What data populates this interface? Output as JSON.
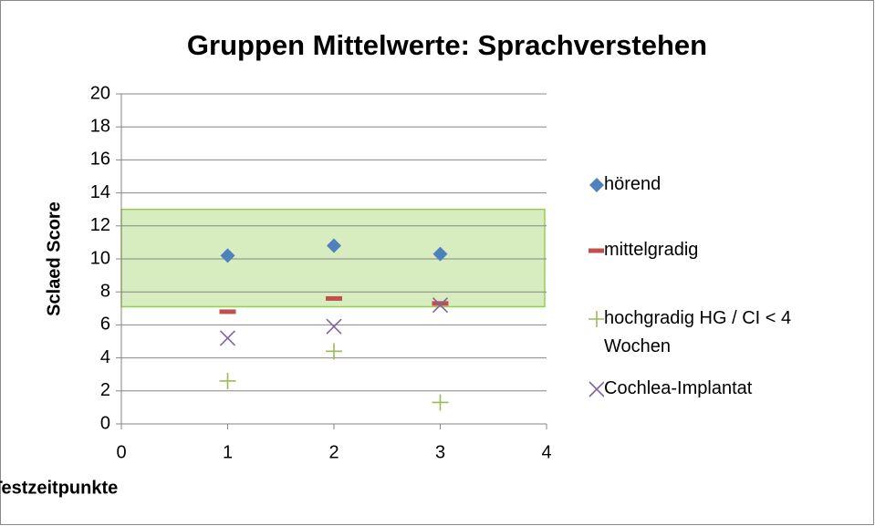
{
  "chart_data": {
    "type": "scatter",
    "title": "Gruppen Mittelwerte: Sprachverstehen",
    "xlabel": "Testzeitpunkte",
    "ylabel": "Sclaed Score",
    "xlim": [
      0,
      4
    ],
    "xticks": [
      0,
      1,
      2,
      3,
      4
    ],
    "ylim": [
      0,
      20
    ],
    "yticks": [
      0,
      2,
      4,
      6,
      8,
      10,
      12,
      14,
      16,
      18,
      20
    ],
    "grid": true,
    "legend": "right",
    "shaded_range": {
      "x": [
        0,
        4
      ],
      "y": [
        7.1,
        13
      ],
      "color": "#d7edbf",
      "edge": "#92d050"
    },
    "series": [
      {
        "name": "hörend",
        "color": "#4f81bd",
        "marker": "diamond",
        "x": [
          1,
          2,
          3
        ],
        "values": [
          10.2,
          10.8,
          10.3
        ]
      },
      {
        "name": "mittelgradig",
        "color": "#c0504d",
        "marker": "dash",
        "x": [
          1,
          2,
          3
        ],
        "values": [
          6.8,
          7.6,
          7.3
        ]
      },
      {
        "name": "hochgradig HG / CI < 4 Wochen",
        "color": "#9bbb59",
        "marker": "plus",
        "x": [
          1,
          2,
          3
        ],
        "values": [
          2.6,
          4.4,
          1.3
        ]
      },
      {
        "name": "Cochlea-Implantat",
        "color": "#8064a2",
        "marker": "cross",
        "x": [
          1,
          2,
          3
        ],
        "values": [
          5.2,
          5.9,
          7.2
        ]
      }
    ]
  }
}
